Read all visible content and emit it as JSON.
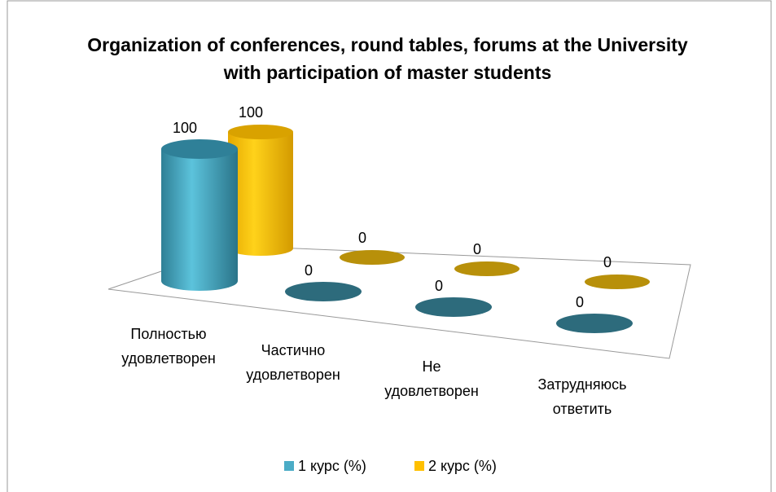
{
  "chart_data": {
    "type": "bar3d",
    "title": "Organization  of conferences, round tables, forums at the University with participation of master students",
    "categories": [
      "Полностью удовлетворен",
      "Частично удовлетворен",
      "Не удовлетворен",
      "Затрудняюсь ответить"
    ],
    "series": [
      {
        "name": "1 курс (%)",
        "color": "#4bacc6",
        "values": [
          100,
          0,
          0,
          0
        ]
      },
      {
        "name": "2 курс (%)",
        "color": "#ffc000",
        "values": [
          100,
          0,
          0,
          0
        ]
      }
    ],
    "legend": "bottom"
  }
}
